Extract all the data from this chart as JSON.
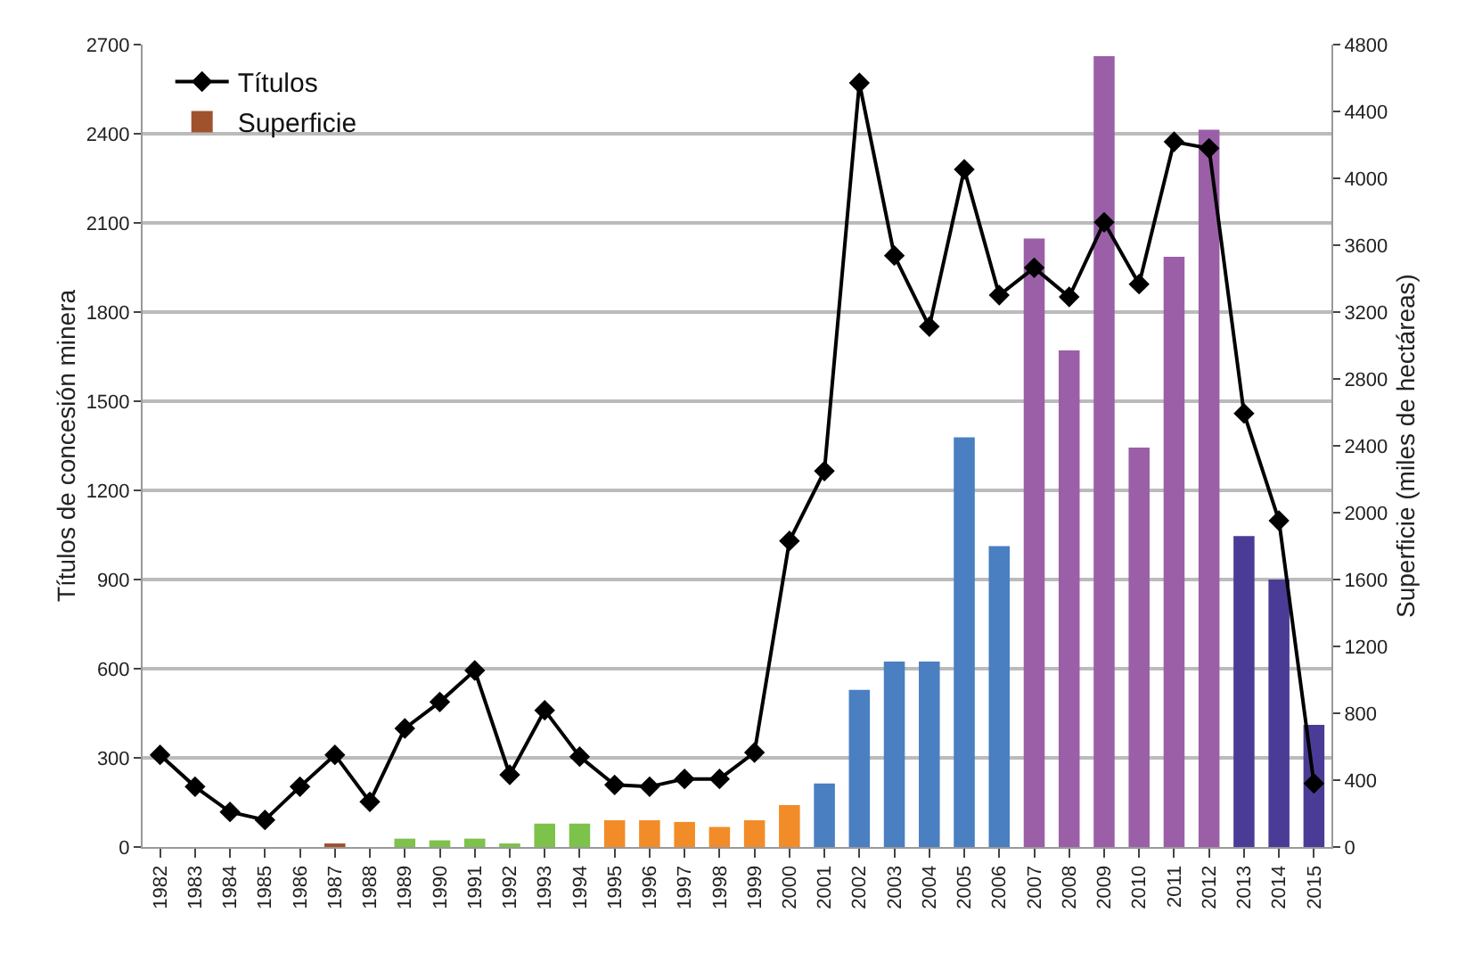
{
  "chart_data": {
    "type": "bar",
    "ylabel": "Títulos de concesión minera",
    "y2label": "Superficie (miles de hectáreas)",
    "categories": [
      "1982",
      "1983",
      "1984",
      "1985",
      "1986",
      "1987",
      "1988",
      "1989",
      "1990",
      "1991",
      "1992",
      "1993",
      "1994",
      "1995",
      "1996",
      "1997",
      "1998",
      "1999",
      "2000",
      "2001",
      "2002",
      "2003",
      "2004",
      "2005",
      "2006",
      "2007",
      "2008",
      "2009",
      "2010",
      "2011",
      "2012",
      "2013",
      "2014",
      "2015"
    ],
    "series": [
      {
        "name": "Superficie",
        "axis": "y2",
        "values": [
          0,
          0,
          0,
          0,
          0,
          20,
          0,
          50,
          40,
          50,
          20,
          140,
          140,
          160,
          160,
          150,
          120,
          160,
          250,
          380,
          940,
          1110,
          1110,
          2450,
          1800,
          3640,
          2970,
          4730,
          2390,
          3530,
          4290,
          1860,
          1600,
          730
        ],
        "colors": [
          "#a0522d",
          "#a0522d",
          "#a0522d",
          "#a0522d",
          "#a0522d",
          "#a0522d",
          "#a0522d",
          "#7dc24b",
          "#7dc24b",
          "#7dc24b",
          "#7dc24b",
          "#7dc24b",
          "#7dc24b",
          "#f28c28",
          "#f28c28",
          "#f28c28",
          "#f28c28",
          "#f28c28",
          "#f28c28",
          "#4a7fc1",
          "#4a7fc1",
          "#4a7fc1",
          "#4a7fc1",
          "#4a7fc1",
          "#4a7fc1",
          "#9b5fa8",
          "#9b5fa8",
          "#9b5fa8",
          "#9b5fa8",
          "#9b5fa8",
          "#9b5fa8",
          "#4a3c96",
          "#4a3c96",
          "#4a3c96"
        ]
      },
      {
        "name": "Títulos",
        "type": "line",
        "color": "#000000",
        "values": [
          310,
          203,
          118,
          91,
          203,
          310,
          152,
          399,
          488,
          594,
          243,
          460,
          304,
          209,
          203,
          229,
          229,
          318,
          1030,
          1265,
          2571,
          1990,
          1751,
          2280,
          1857,
          1949,
          1851,
          2102,
          1894,
          2373,
          2351,
          1459,
          1098,
          214
        ]
      }
    ],
    "ylim": [
      0,
      2700
    ],
    "yticks": [
      0,
      300,
      600,
      900,
      1200,
      1500,
      1800,
      2100,
      2400,
      2700
    ],
    "y2lim": [
      0,
      4800
    ],
    "y2ticks": [
      0,
      400,
      800,
      1200,
      1600,
      2000,
      2400,
      2800,
      3200,
      3600,
      4000,
      4400,
      4800
    ],
    "grid": "y",
    "legend": "top left",
    "marker": "diamond",
    "line_style": "solid"
  }
}
